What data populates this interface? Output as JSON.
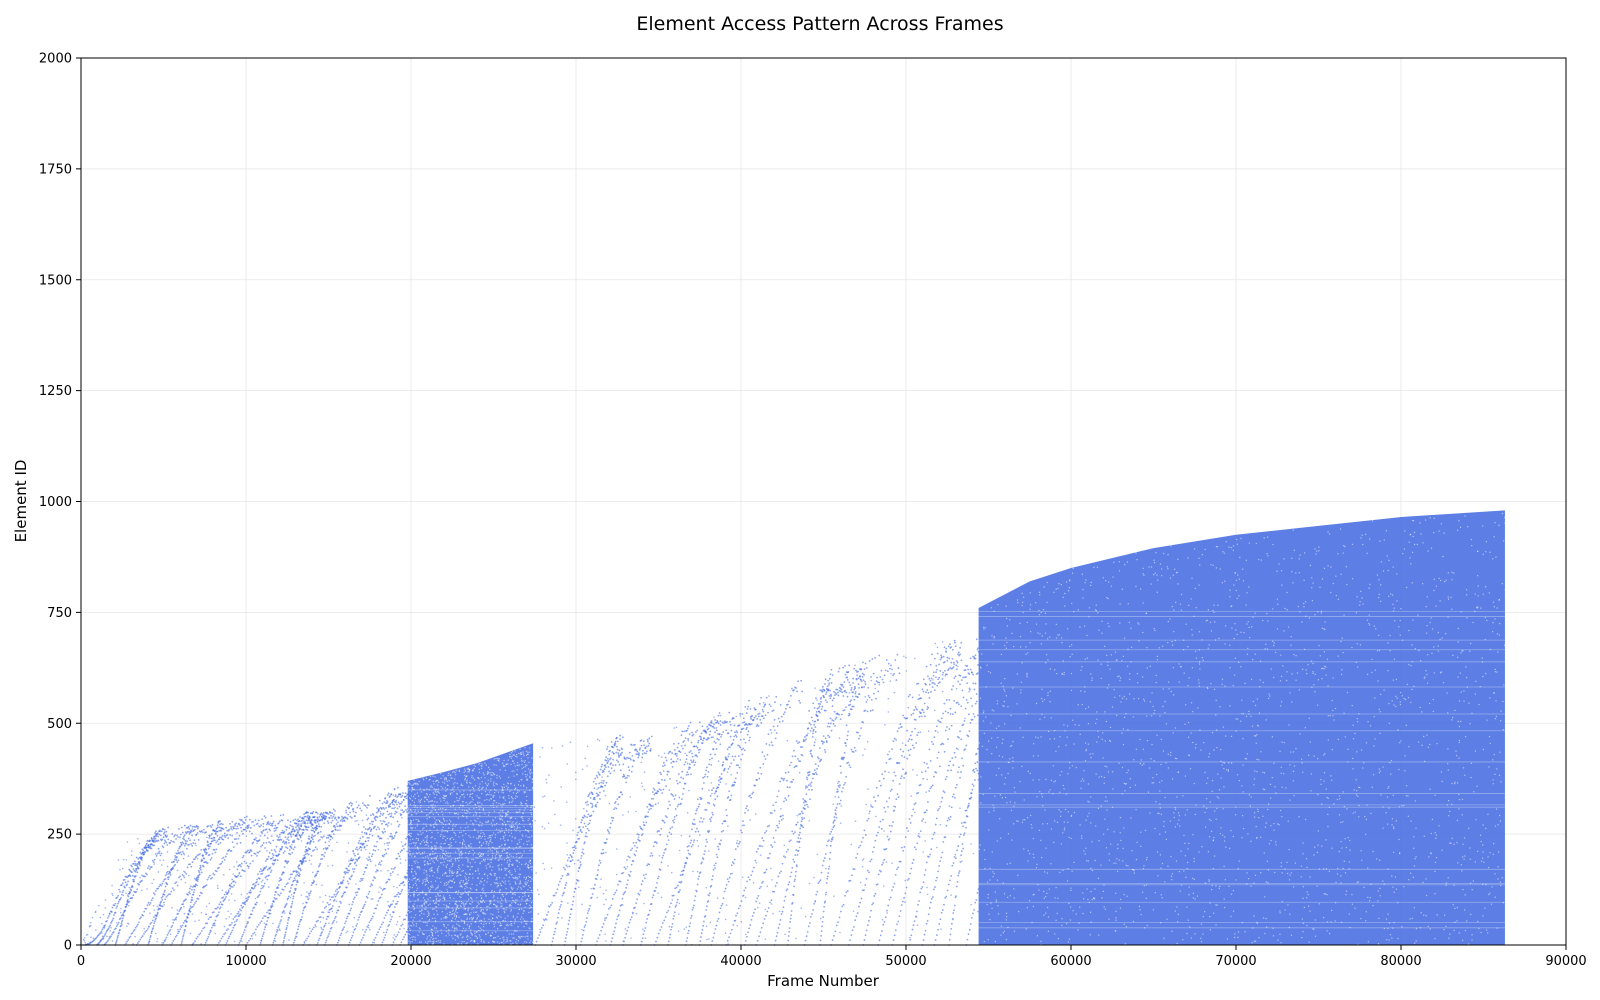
{
  "chart_data": {
    "type": "scatter",
    "title": "Element Access Pattern Across Frames",
    "xlabel": "Frame Number",
    "ylabel": "Element ID",
    "xlim": [
      0,
      90000
    ],
    "ylim": [
      0,
      2000
    ],
    "xticks": [
      0,
      10000,
      20000,
      30000,
      40000,
      50000,
      60000,
      70000,
      80000,
      90000
    ],
    "yticks": [
      0,
      250,
      500,
      750,
      1000,
      1250,
      1500,
      1750,
      2000
    ],
    "xtick_labels": [
      "0",
      "10000",
      "20000",
      "30000",
      "40000",
      "50000",
      "60000",
      "70000",
      "80000",
      "90000"
    ],
    "ytick_labels": [
      "0",
      "250",
      "500",
      "750",
      "1000",
      "1250",
      "1500",
      "1750",
      "2000"
    ],
    "grid": true,
    "marker_color": "#4169e1",
    "series": [
      {
        "name": "",
        "regions": [
          {
            "kind": "sparse_sweeps",
            "x_range": [
              0,
              20000
            ],
            "max_element_boundary": [
              [
                0,
                0
              ],
              [
                2500,
                230
              ],
              [
                5000,
                265
              ],
              [
                10000,
                290
              ],
              [
                15000,
                305
              ],
              [
                19800,
                365
              ]
            ]
          },
          {
            "kind": "dense_block",
            "x_range": [
              19800,
              27400
            ],
            "top_boundary": [
              [
                19800,
                370
              ],
              [
                22000,
                390
              ],
              [
                24000,
                410
              ],
              [
                27400,
                455
              ]
            ]
          },
          {
            "kind": "sparse_sweeps",
            "x_range": [
              27400,
              54400
            ],
            "max_element_boundary": [
              [
                27400,
                455
              ],
              [
                32000,
                470
              ],
              [
                36000,
                490
              ],
              [
                40000,
                545
              ],
              [
                45000,
                620
              ],
              [
                50000,
                670
              ],
              [
                54300,
                705
              ]
            ]
          },
          {
            "kind": "dense_block",
            "x_range": [
              54400,
              86300
            ],
            "top_boundary": [
              [
                54400,
                760
              ],
              [
                57500,
                820
              ],
              [
                60000,
                850
              ],
              [
                65000,
                895
              ],
              [
                70000,
                925
              ],
              [
                75000,
                945
              ],
              [
                80000,
                965
              ],
              [
                86300,
                980
              ]
            ]
          }
        ]
      }
    ]
  }
}
